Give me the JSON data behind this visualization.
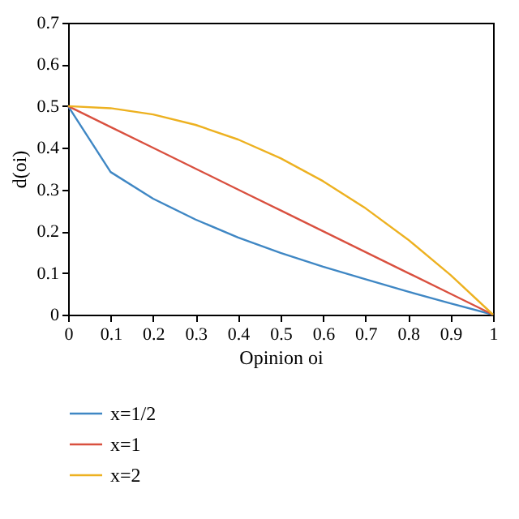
{
  "chart_data": {
    "type": "line",
    "xlabel": "Opinion oi",
    "ylabel": "d(oi)",
    "x": [
      0,
      0.1,
      0.2,
      0.3,
      0.4,
      0.5,
      0.6,
      0.7,
      0.8,
      0.9,
      1
    ],
    "series": [
      {
        "name": "x=1/2",
        "color": "#3f87c4",
        "values": [
          0.5,
          0.342,
          0.278,
          0.228,
          0.185,
          0.148,
          0.115,
          0.085,
          0.055,
          0.027,
          0
        ]
      },
      {
        "name": "x=1",
        "color": "#d9503f",
        "values": [
          0.5,
          0.45,
          0.4,
          0.35,
          0.3,
          0.25,
          0.2,
          0.15,
          0.1,
          0.05,
          0
        ]
      },
      {
        "name": "x=2",
        "color": "#edb120",
        "values": [
          0.5,
          0.495,
          0.48,
          0.455,
          0.42,
          0.375,
          0.32,
          0.255,
          0.18,
          0.095,
          0
        ]
      }
    ],
    "xlim": [
      0,
      1
    ],
    "xticks": [
      0,
      0.1,
      0.2,
      0.3,
      0.4,
      0.5,
      0.6,
      0.7,
      0.8,
      0.9,
      1
    ],
    "ylim": [
      0,
      0.7
    ],
    "yticks": [
      0,
      0.1,
      0.2,
      0.3,
      0.4,
      0.5,
      0.6,
      0.7
    ],
    "grid": false,
    "legend": "bottom",
    "marker": "none",
    "line_style": "solid"
  }
}
